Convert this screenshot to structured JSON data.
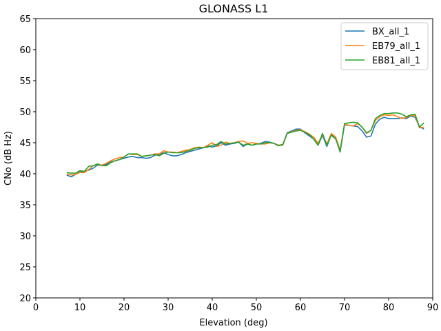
{
  "chart_data": {
    "type": "line",
    "title": "GLONASS L1",
    "xlabel": "Elevation (deg)",
    "ylabel": "CNo (dB Hz)",
    "xlim": [
      0,
      90
    ],
    "ylim": [
      20,
      65
    ],
    "xticks": [
      0,
      10,
      20,
      30,
      40,
      50,
      60,
      70,
      80,
      90
    ],
    "yticks": [
      20,
      25,
      30,
      35,
      40,
      45,
      50,
      55,
      60,
      65
    ],
    "grid": false,
    "legend_position": "top-right",
    "x": [
      7,
      8,
      9,
      10,
      11,
      12,
      13,
      14,
      15,
      16,
      17,
      18,
      19,
      20,
      21,
      22,
      23,
      24,
      25,
      26,
      27,
      28,
      29,
      30,
      31,
      32,
      33,
      34,
      35,
      36,
      37,
      38,
      39,
      40,
      41,
      42,
      43,
      44,
      45,
      46,
      47,
      48,
      49,
      50,
      51,
      52,
      53,
      54,
      55,
      56,
      57,
      58,
      59,
      60,
      61,
      62,
      63,
      64,
      65,
      66,
      67,
      68,
      69,
      70,
      71,
      72,
      73,
      74,
      75,
      76,
      77,
      78,
      79,
      80,
      81,
      82,
      83,
      84,
      85,
      86,
      87,
      88
    ],
    "series": [
      {
        "name": "BX_all_1",
        "color": "#1f77b4",
        "values": [
          39.8,
          39.5,
          39.9,
          40.3,
          40.4,
          40.6,
          40.9,
          41.4,
          41.4,
          41.5,
          41.9,
          42.1,
          42.3,
          42.5,
          42.7,
          42.8,
          42.6,
          42.6,
          42.5,
          42.6,
          43.0,
          43.1,
          43.4,
          43.1,
          42.9,
          42.9,
          43.1,
          43.4,
          43.6,
          43.8,
          44.0,
          44.2,
          44.5,
          44.3,
          44.5,
          45.0,
          44.6,
          44.8,
          44.9,
          45.1,
          44.4,
          44.8,
          44.6,
          44.8,
          44.9,
          45.2,
          45.1,
          44.9,
          44.6,
          44.7,
          46.6,
          46.9,
          47.2,
          47.2,
          46.6,
          46.1,
          45.6,
          44.6,
          46.2,
          44.4,
          46.3,
          45.7,
          43.5,
          47.9,
          47.8,
          47.7,
          47.6,
          46.9,
          45.9,
          46.1,
          48.0,
          48.8,
          49.1,
          48.9,
          48.9,
          48.9,
          49.0,
          48.9,
          49.3,
          49.1,
          47.6,
          47.2
        ]
      },
      {
        "name": "EB79_all_1",
        "color": "#ff7f0e",
        "values": [
          40.0,
          39.8,
          39.9,
          40.2,
          40.2,
          40.7,
          41.3,
          41.5,
          41.4,
          41.7,
          42.1,
          42.4,
          42.6,
          42.7,
          43.2,
          43.1,
          43.1,
          42.8,
          42.9,
          43.0,
          43.2,
          43.2,
          43.7,
          43.5,
          43.5,
          43.4,
          43.6,
          43.8,
          43.9,
          44.2,
          44.3,
          44.2,
          44.6,
          45.0,
          44.4,
          44.6,
          45.1,
          44.9,
          45.0,
          45.2,
          45.3,
          44.9,
          45.0,
          44.9,
          44.8,
          44.8,
          45.0,
          44.9,
          44.6,
          44.6,
          46.5,
          46.8,
          47.0,
          47.1,
          46.8,
          46.4,
          45.9,
          44.9,
          46.3,
          44.8,
          46.5,
          45.9,
          43.8,
          48.0,
          47.8,
          47.7,
          48.1,
          47.5,
          46.5,
          47.0,
          48.6,
          49.2,
          49.5,
          49.4,
          49.5,
          49.2,
          48.9,
          49.1,
          49.4,
          49.4,
          47.4,
          47.5
        ]
      },
      {
        "name": "EB81_all_1",
        "color": "#2ca02c",
        "values": [
          40.2,
          40.1,
          40.1,
          40.5,
          40.4,
          41.2,
          41.3,
          41.6,
          41.3,
          41.3,
          41.8,
          42.1,
          42.3,
          42.7,
          43.2,
          43.2,
          43.2,
          42.8,
          42.9,
          43.0,
          43.1,
          42.9,
          43.3,
          43.5,
          43.4,
          43.4,
          43.4,
          43.6,
          43.8,
          44.1,
          44.2,
          44.2,
          44.3,
          44.6,
          44.7,
          45.2,
          44.8,
          44.9,
          45.0,
          45.1,
          44.6,
          44.8,
          44.6,
          44.8,
          44.8,
          45.0,
          45.0,
          44.9,
          44.5,
          44.7,
          46.5,
          46.7,
          46.9,
          47.0,
          46.7,
          46.3,
          45.6,
          44.6,
          46.5,
          44.6,
          46.2,
          45.6,
          43.6,
          48.1,
          48.2,
          48.3,
          48.2,
          47.5,
          46.6,
          47.0,
          48.9,
          49.4,
          49.7,
          49.7,
          49.8,
          49.8,
          49.6,
          49.2,
          49.5,
          49.6,
          47.5,
          48.2
        ]
      }
    ]
  }
}
